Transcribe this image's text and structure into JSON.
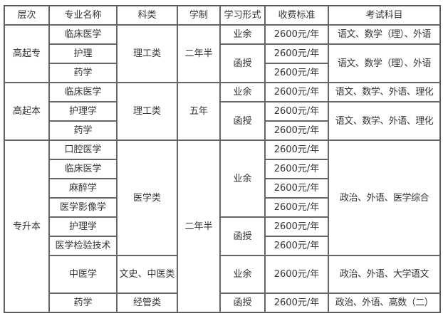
{
  "header": [
    "层次",
    "专业名称",
    "科类",
    "学制",
    "学习形式",
    "收费标准",
    "考试科目"
  ],
  "levels": [
    "高起专",
    "高起本",
    "专升本"
  ],
  "majors": [
    "临床医学",
    "护理",
    "药学",
    "临床医学",
    "护理学",
    "药学",
    "口腔医学",
    "临床医学",
    "麻醉学",
    "医学影像学",
    "护理学",
    "医学检验技术",
    "中医学",
    "药学"
  ],
  "categories": [
    "理工类",
    "理工类",
    "医学类",
    "文史、中医类",
    "经管类"
  ],
  "durations": [
    "二年半",
    "五年",
    "二年半"
  ],
  "forms": [
    "业余",
    "函授",
    "业余",
    "函授",
    "业余",
    "函授",
    "业余",
    "函授"
  ],
  "fees": [
    "2600元/年",
    "2600元/年",
    "2600元/年",
    "2600元/年",
    "2600元/年",
    "2600元/年",
    "2600元/年",
    "2600元/年",
    "2600元/年",
    "2600元/年",
    "2600元/年",
    "2600元/年",
    "2600元/年",
    "2600元/年"
  ],
  "exams": [
    "语文、数学（理）、外语",
    "语文、数学（理）、外语",
    "语文、数学、外语、理化",
    "语文、数学、外语、理化",
    "政治、外语、医学综合",
    "政治、外语、大学语文",
    "政治、外语、高数（二）"
  ]
}
